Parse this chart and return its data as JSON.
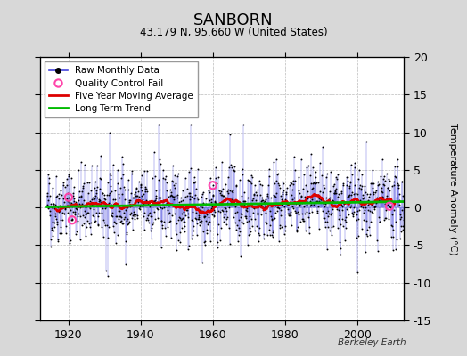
{
  "title": "SANBORN",
  "subtitle": "43.179 N, 95.660 W (United States)",
  "ylabel": "Temperature Anomaly (°C)",
  "credit": "Berkeley Earth",
  "xlim": [
    1912,
    2013
  ],
  "ylim": [
    -15,
    20
  ],
  "yticks": [
    -15,
    -10,
    -5,
    0,
    5,
    10,
    15,
    20
  ],
  "xticks": [
    1920,
    1940,
    1960,
    1980,
    2000
  ],
  "bg_color": "#d8d8d8",
  "plot_bg_color": "#ffffff",
  "grid_color": "#bbbbbb",
  "raw_line_color": "#4444dd",
  "raw_dot_color": "#000000",
  "ma_color": "#dd0000",
  "trend_color": "#00bb00",
  "qc_color": "#ff44aa",
  "seed": 42,
  "n_months": 1188,
  "start_year": 1914,
  "end_year": 2013
}
